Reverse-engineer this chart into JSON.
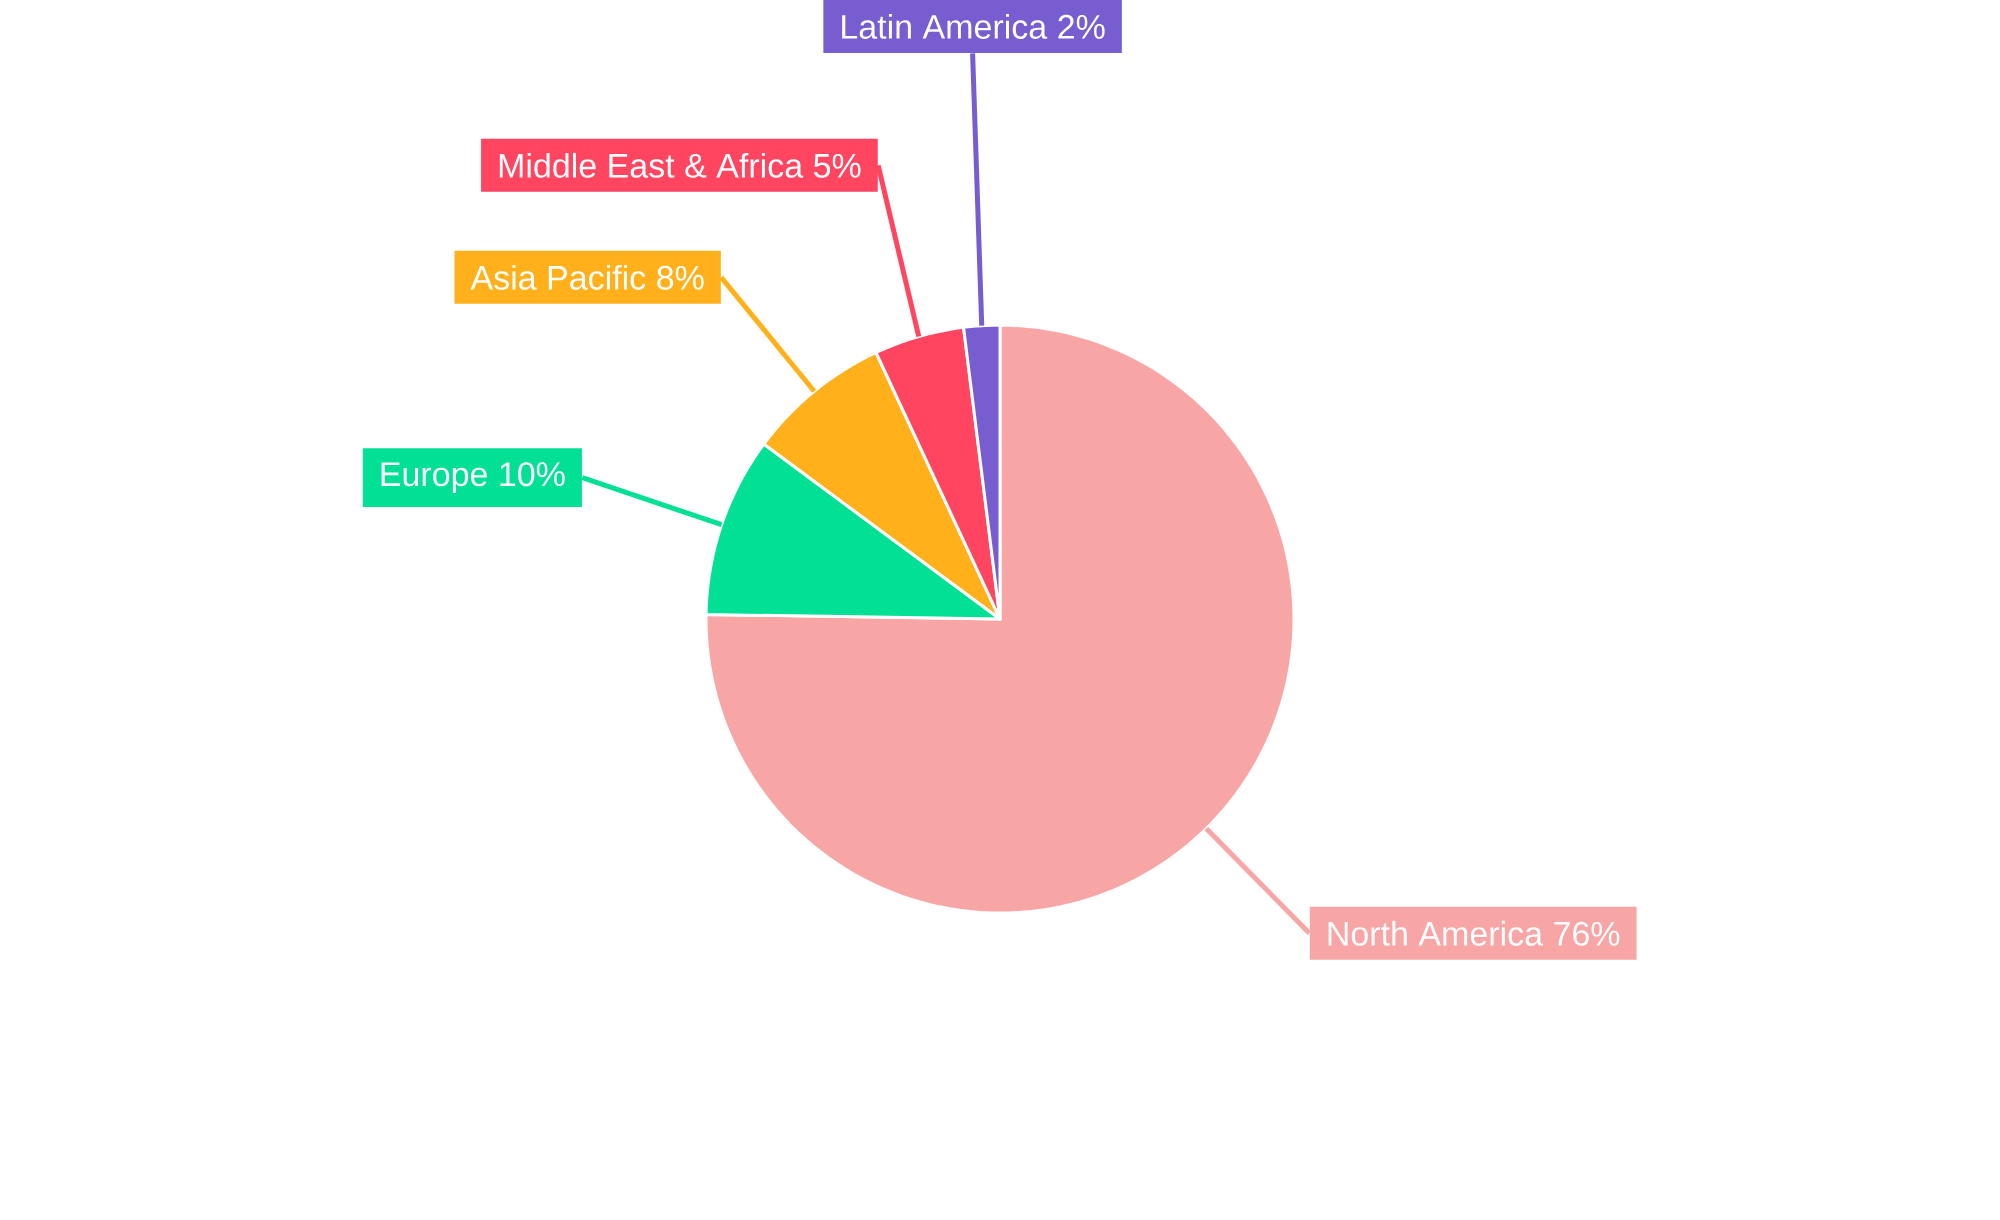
{
  "chart_data": {
    "type": "pie",
    "categories": [
      "North America",
      "Europe",
      "Asia Pacific",
      "Middle East & Africa",
      "Latin America"
    ],
    "values": [
      76,
      10,
      8,
      5,
      2
    ],
    "value_labels": [
      "76%",
      "10%",
      "8%",
      "5%",
      "2%"
    ],
    "colors": [
      "#f8a5a5",
      "#02e095",
      "#ffb01a",
      "#ff4560",
      "#775dd0"
    ]
  }
}
